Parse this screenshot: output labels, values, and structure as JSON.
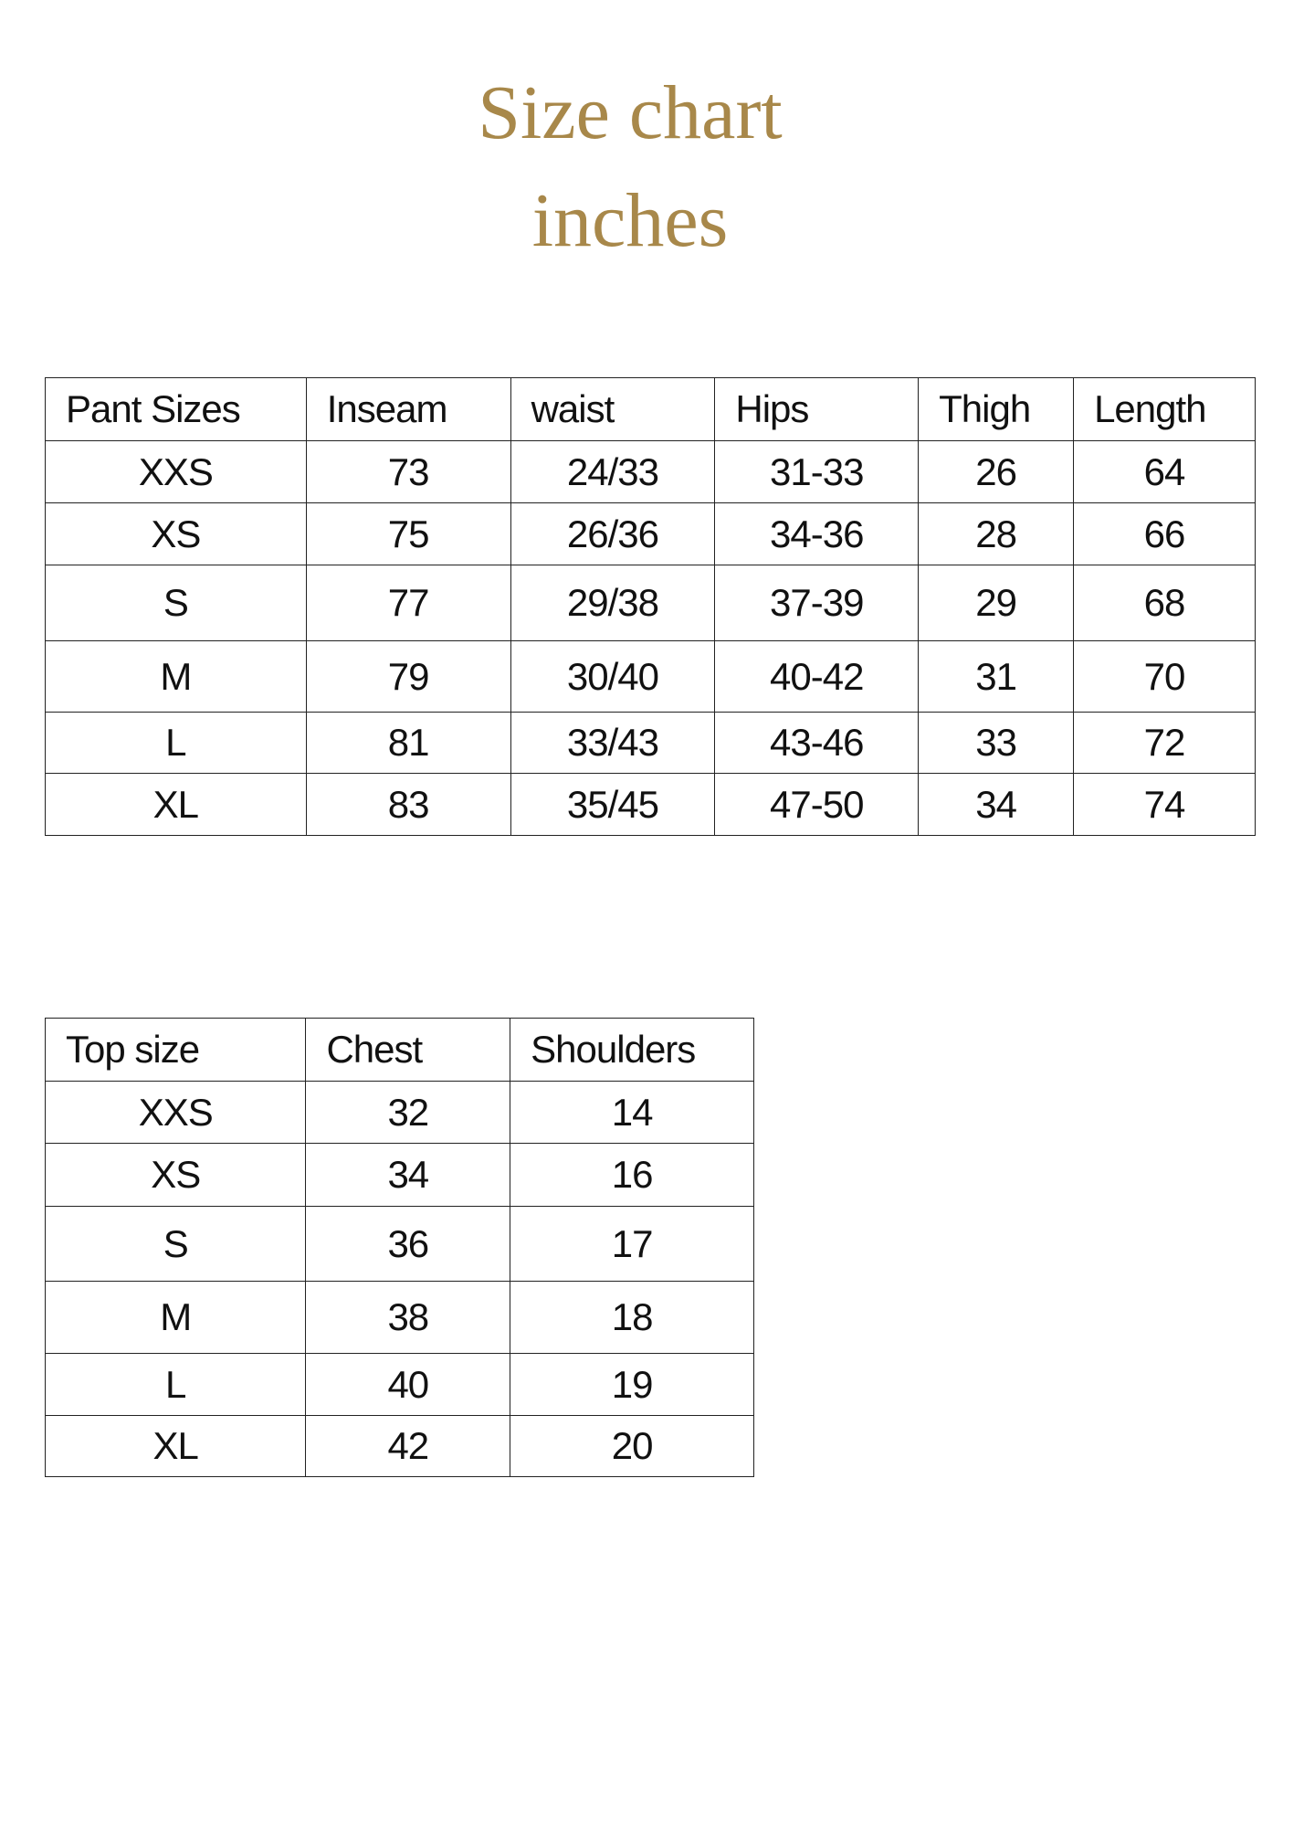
{
  "title": "Size chart",
  "subtitle": "inches",
  "colors": {
    "title": "#a8884a",
    "border": "#222222"
  },
  "pants_table": {
    "headers": [
      "Pant Sizes",
      "Inseam",
      "waist",
      "Hips",
      "Thigh",
      "Length"
    ],
    "rows": [
      [
        "XXS",
        "73",
        "24/33",
        "31-33",
        "26",
        "64"
      ],
      [
        "XS",
        "75",
        "26/36",
        "34-36",
        "28",
        "66"
      ],
      [
        "S",
        "77",
        "29/38",
        "37-39",
        "29",
        "68"
      ],
      [
        "M",
        "79",
        "30/40",
        "40-42",
        "31",
        "70"
      ],
      [
        "L",
        "81",
        "33/43",
        "43-46",
        "33",
        "72"
      ],
      [
        "XL",
        "83",
        "35/45",
        "47-50",
        "34",
        "74"
      ]
    ]
  },
  "tops_table": {
    "headers": [
      "Top size",
      "Chest",
      "Shoulders"
    ],
    "rows": [
      [
        "XXS",
        "32",
        "14"
      ],
      [
        "XS",
        "34",
        "16"
      ],
      [
        "S",
        "36",
        "17"
      ],
      [
        "M",
        "38",
        "18"
      ],
      [
        "L",
        "40",
        "19"
      ],
      [
        "XL",
        "42",
        "20"
      ]
    ]
  }
}
